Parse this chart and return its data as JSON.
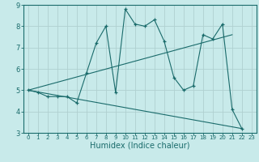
{
  "xlabel": "Humidex (Indice chaleur)",
  "background_color": "#c8eaea",
  "grid_color": "#b0d0d0",
  "line_color": "#1a6b6b",
  "xlim": [
    -0.5,
    23.5
  ],
  "ylim": [
    3,
    9
  ],
  "xticks": [
    0,
    1,
    2,
    3,
    4,
    5,
    6,
    7,
    8,
    9,
    10,
    11,
    12,
    13,
    14,
    15,
    16,
    17,
    18,
    19,
    20,
    21,
    22,
    23
  ],
  "yticks": [
    3,
    4,
    5,
    6,
    7,
    8,
    9
  ],
  "line1_x": [
    0,
    1,
    2,
    3,
    4,
    5,
    6,
    7,
    8,
    9,
    10,
    11,
    12,
    13,
    14,
    15,
    16,
    17,
    18,
    19,
    20,
    21,
    22
  ],
  "line1_y": [
    5.0,
    4.9,
    4.7,
    4.7,
    4.7,
    4.4,
    5.8,
    7.2,
    8.0,
    4.9,
    8.8,
    8.1,
    8.0,
    8.3,
    7.3,
    5.6,
    5.0,
    5.2,
    7.6,
    7.4,
    8.1,
    4.1,
    3.2
  ],
  "line2_x": [
    0,
    21
  ],
  "line2_y": [
    5.0,
    7.6
  ],
  "line3_x": [
    0,
    22
  ],
  "line3_y": [
    5.0,
    3.2
  ],
  "font_size": 7,
  "tick_fontsize_x": 5,
  "tick_fontsize_y": 6
}
